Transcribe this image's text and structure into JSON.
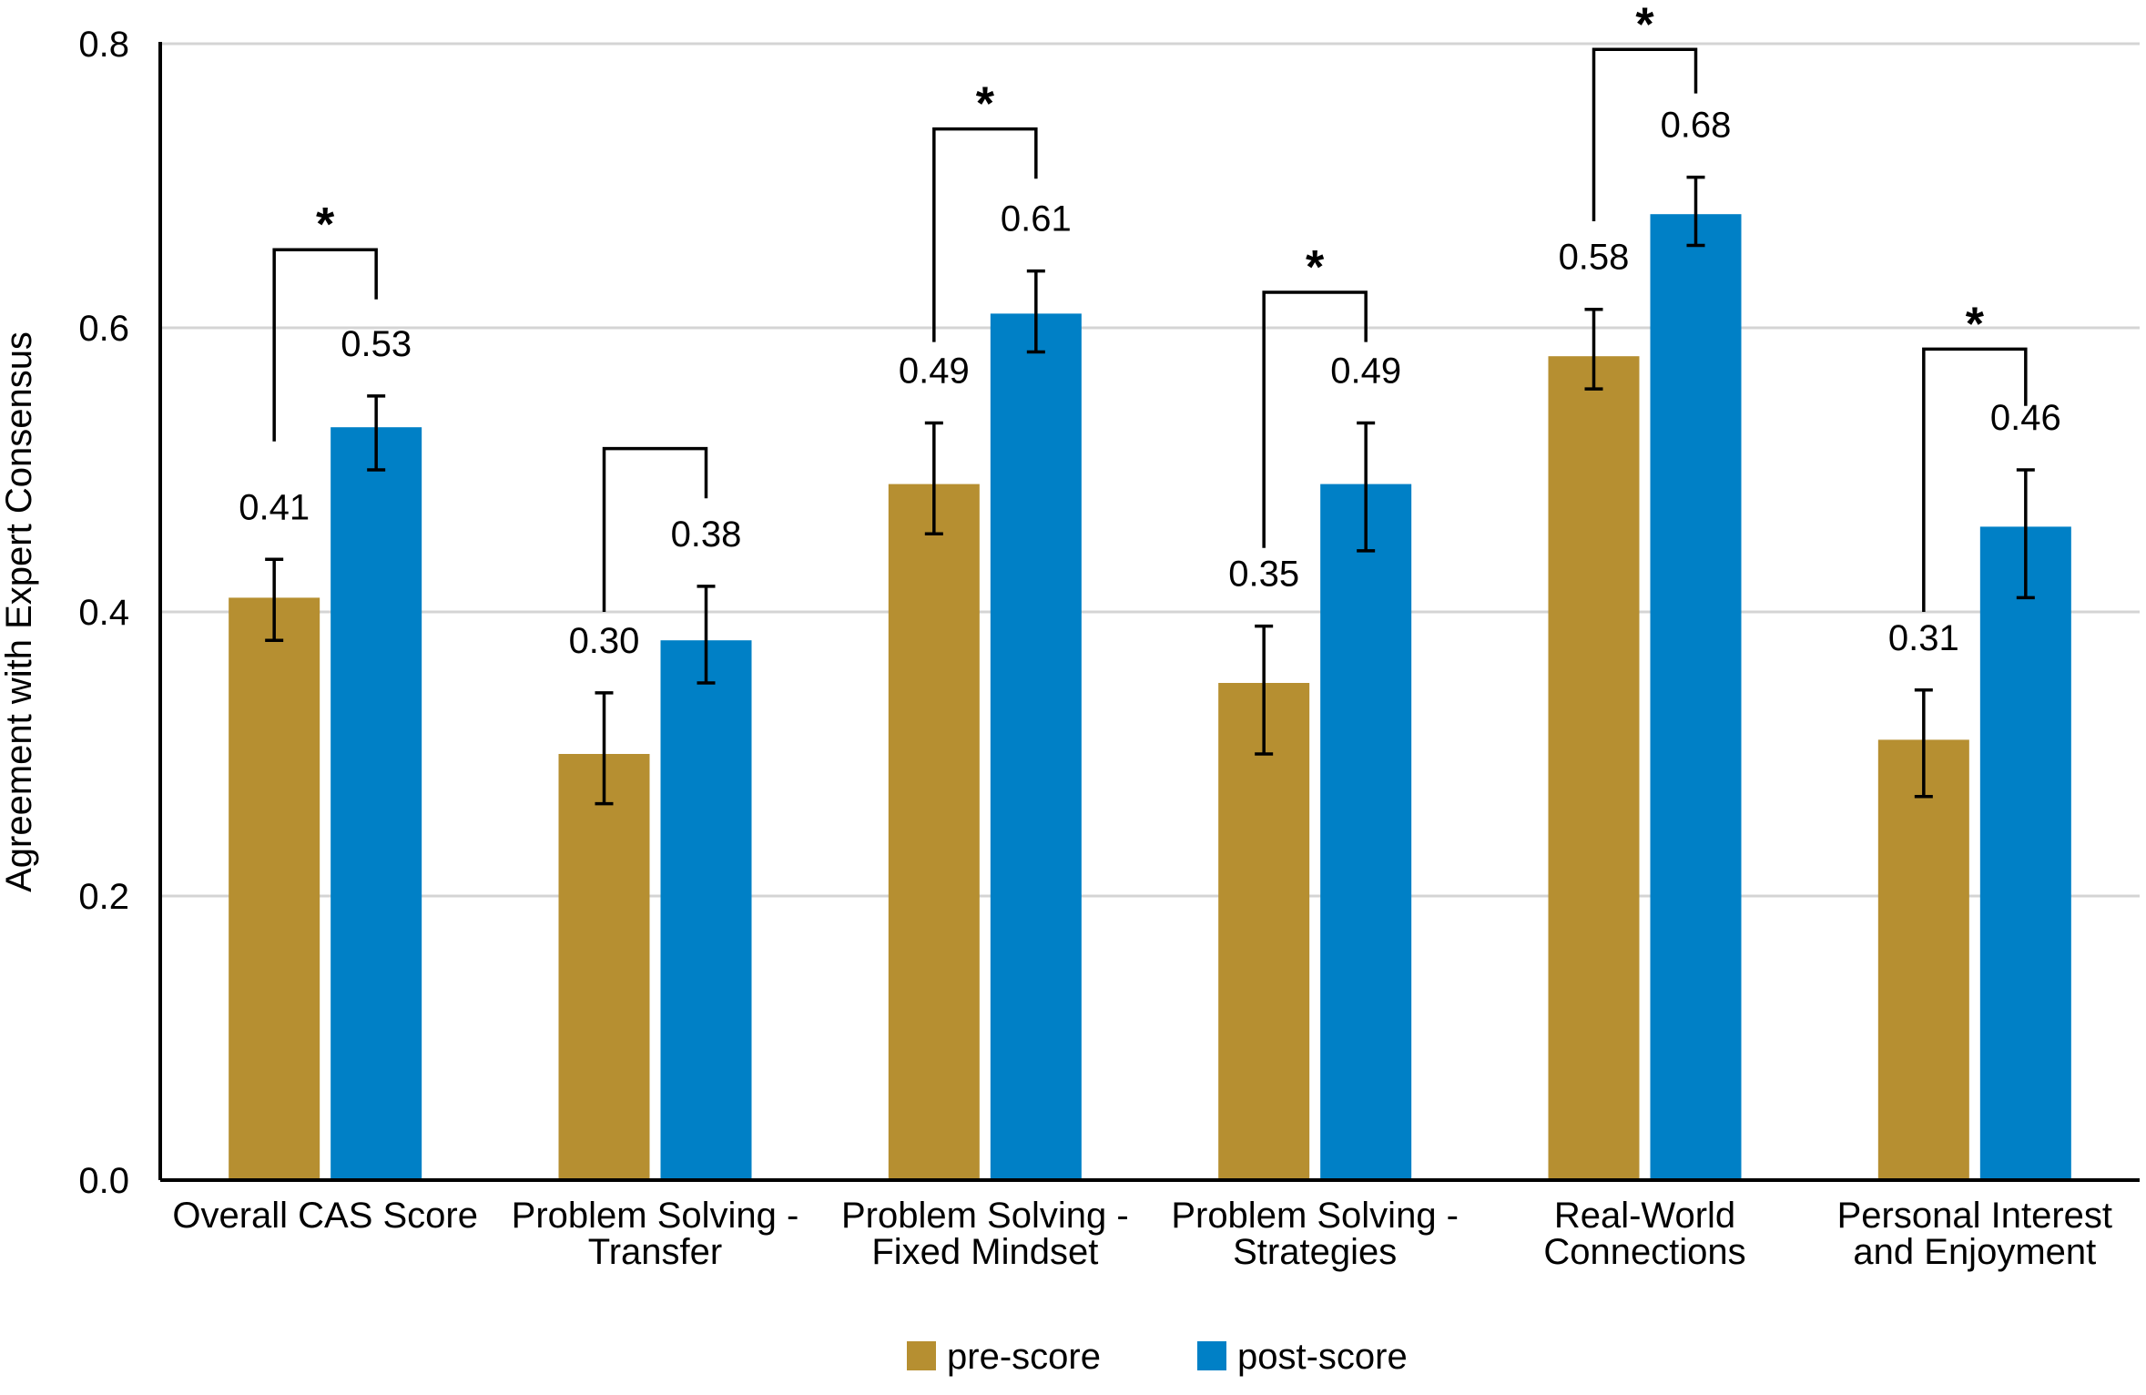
{
  "chart_data": {
    "type": "bar",
    "title": "",
    "xlabel": "",
    "ylabel": "Agreement with Expert Consensus",
    "ylim": [
      0,
      0.8
    ],
    "yticks": [
      "0.0",
      "0.2",
      "0.4",
      "0.6",
      "0.8"
    ],
    "ytick_values": [
      0,
      0.2,
      0.4,
      0.6,
      0.8
    ],
    "grid": true,
    "legend_position": "bottom-center",
    "categories": [
      [
        "Overall CAS Score"
      ],
      [
        "Problem Solving -",
        "Transfer"
      ],
      [
        "Problem Solving -",
        "Fixed Mindset"
      ],
      [
        "Problem Solving -",
        "Strategies"
      ],
      [
        "Real-World",
        "Connections"
      ],
      [
        "Personal Interest",
        "and Enjoyment"
      ]
    ],
    "series": [
      {
        "name": "pre-score",
        "color": "#B68F31",
        "values": [
          0.41,
          0.3,
          0.49,
          0.35,
          0.58,
          0.31
        ],
        "labels": [
          "0.41",
          "0.30",
          "0.49",
          "0.35",
          "0.58",
          "0.31"
        ],
        "error_low": [
          0.38,
          0.265,
          0.455,
          0.3,
          0.557,
          0.27
        ],
        "error_high": [
          0.437,
          0.343,
          0.533,
          0.39,
          0.613,
          0.345
        ]
      },
      {
        "name": "post-score",
        "color": "#0080C6",
        "values": [
          0.53,
          0.38,
          0.61,
          0.49,
          0.68,
          0.46
        ],
        "labels": [
          "0.53",
          "0.38",
          "0.61",
          "0.49",
          "0.68",
          "0.46"
        ],
        "error_low": [
          0.5,
          0.35,
          0.583,
          0.443,
          0.658,
          0.41
        ],
        "error_high": [
          0.552,
          0.418,
          0.64,
          0.533,
          0.706,
          0.5
        ]
      }
    ],
    "significance": [
      {
        "marker": "*",
        "bracket_left_bottom": 0.52,
        "bracket_right_bottom": 0.62,
        "bracket_top": 0.655
      },
      {
        "marker": "",
        "bracket_left_bottom": 0.4,
        "bracket_right_bottom": 0.48,
        "bracket_top": 0.515
      },
      {
        "marker": "*",
        "bracket_left_bottom": 0.59,
        "bracket_right_bottom": 0.705,
        "bracket_top": 0.74
      },
      {
        "marker": "*",
        "bracket_left_bottom": 0.445,
        "bracket_right_bottom": 0.59,
        "bracket_top": 0.625
      },
      {
        "marker": "*",
        "bracket_left_bottom": 0.675,
        "bracket_right_bottom": 0.765,
        "bracket_top": 0.796
      },
      {
        "marker": "*",
        "bracket_left_bottom": 0.4,
        "bracket_right_bottom": 0.545,
        "bracket_top": 0.585
      }
    ]
  }
}
